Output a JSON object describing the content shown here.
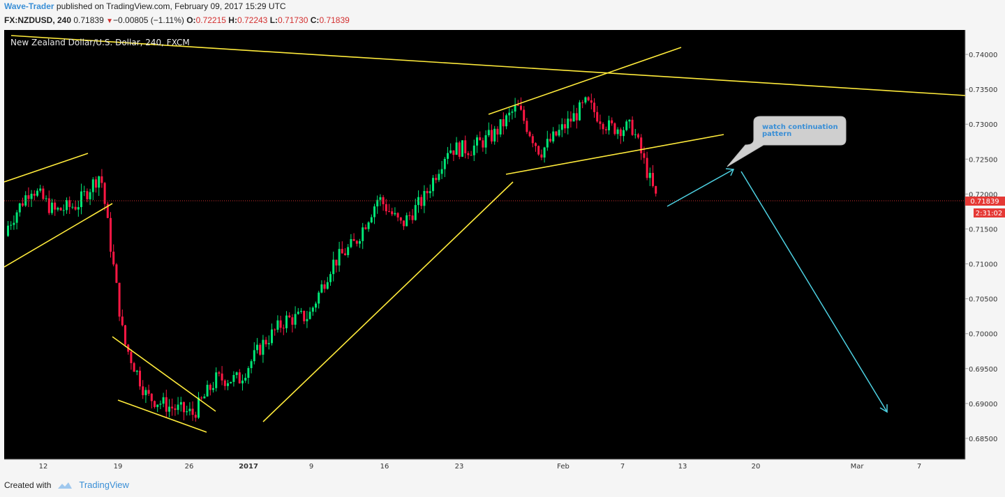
{
  "header": {
    "author": "Wave-Trader",
    "published": " published on TradingView.com, February 09, 2017 15:29 UTC"
  },
  "quote": {
    "symbol": "FX:NZDUSD, 240",
    "last": "0.71839",
    "arrow": "▼",
    "change": "−0.00805 (−1.11%)",
    "open_label": "O:",
    "open": "0.72215",
    "high_label": "H:",
    "high": "0.72243",
    "low_label": "L:",
    "low": "0.71730",
    "close_label": "C:",
    "close": "0.71839"
  },
  "chart_data": {
    "type": "candlestick",
    "title": "New Zealand Dollar/U.S. Dollar, 240, FXCM",
    "ylim": [
      0.682,
      0.7435
    ],
    "y_ticks": [
      "0.74000",
      "0.73500",
      "0.73000",
      "0.72500",
      "0.72000",
      "0.71500",
      "0.71000",
      "0.70500",
      "0.70000",
      "0.69500",
      "0.69000",
      "0.68500"
    ],
    "x_ticks": [
      "12",
      "19",
      "26",
      "2017",
      "9",
      "16",
      "23",
      "Feb",
      "7",
      "13",
      "20",
      "Mar",
      "7"
    ],
    "last_price": "0.71839",
    "countdown": "2:31:02",
    "path": [
      [
        0.714,
        0.717
      ],
      [
        0.722,
        0.72
      ],
      [
        0.713,
        0.722
      ],
      [
        0.717,
        0.72
      ],
      [
        0.724,
        0.722
      ],
      [
        0.704,
        0.694
      ],
      [
        0.69,
        0.692
      ],
      [
        0.687,
        0.692
      ],
      [
        0.688,
        0.689
      ],
      [
        0.69,
        0.697
      ],
      [
        0.692,
        0.695
      ],
      [
        0.697,
        0.7
      ],
      [
        0.699,
        0.705
      ],
      [
        0.697,
        0.708
      ],
      [
        0.71,
        0.71
      ],
      [
        0.71,
        0.716
      ],
      [
        0.721,
        0.718
      ],
      [
        0.713,
        0.718
      ],
      [
        0.717,
        0.722
      ],
      [
        0.725,
        0.728
      ],
      [
        0.728,
        0.725
      ],
      [
        0.727,
        0.73
      ],
      [
        0.734,
        0.731
      ],
      [
        0.726,
        0.726
      ],
      [
        0.727,
        0.732
      ],
      [
        0.737,
        0.729
      ],
      [
        0.73,
        0.729
      ],
      [
        0.731,
        0.728
      ],
      [
        0.7205,
        0.7184
      ]
    ],
    "annotations": {
      "callout": "watch continuation pattern"
    }
  },
  "footer": {
    "created_with": "Created with",
    "brand": "TradingView"
  }
}
